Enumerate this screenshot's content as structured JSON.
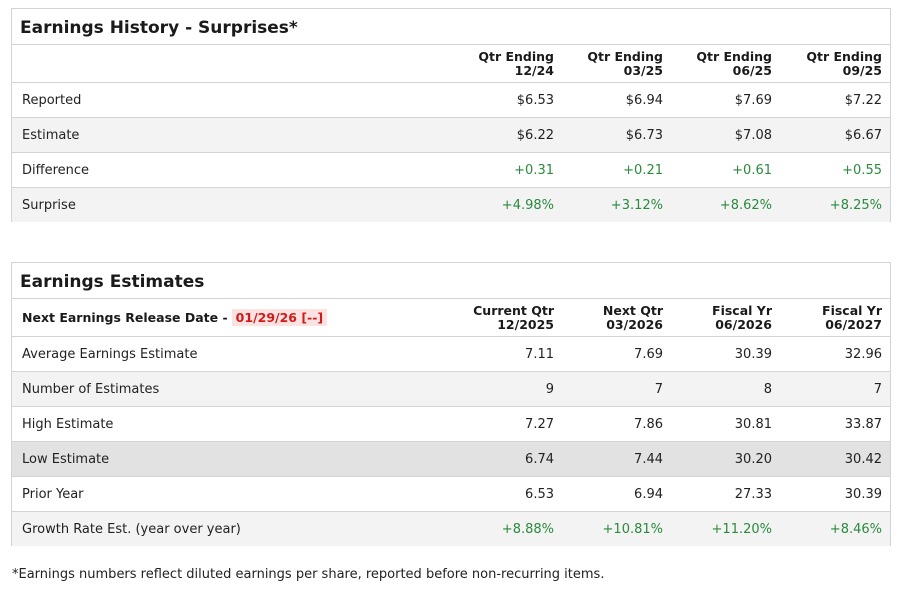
{
  "history": {
    "title": "Earnings History - Surprises*",
    "columns": [
      {
        "line1": "Qtr Ending",
        "line2": "12/24"
      },
      {
        "line1": "Qtr Ending",
        "line2": "03/25"
      },
      {
        "line1": "Qtr Ending",
        "line2": "06/25"
      },
      {
        "line1": "Qtr Ending",
        "line2": "09/25"
      }
    ],
    "rows": [
      {
        "label": "Reported",
        "values": [
          "$6.53",
          "$6.94",
          "$7.69",
          "$7.22"
        ]
      },
      {
        "label": "Estimate",
        "values": [
          "$6.22",
          "$6.73",
          "$7.08",
          "$6.67"
        ]
      },
      {
        "label": "Difference",
        "values": [
          "+0.31",
          "+0.21",
          "+0.61",
          "+0.55"
        ]
      },
      {
        "label": "Surprise",
        "values": [
          "+4.98%",
          "+3.12%",
          "+8.62%",
          "+8.25%"
        ]
      }
    ]
  },
  "estimates": {
    "title": "Earnings Estimates",
    "release_label": "Next Earnings Release Date -",
    "release_date": "01/29/26 [--]",
    "columns": [
      {
        "line1": "Current Qtr",
        "line2": "12/2025"
      },
      {
        "line1": "Next Qtr",
        "line2": "03/2026"
      },
      {
        "line1": "Fiscal Yr",
        "line2": "06/2026"
      },
      {
        "line1": "Fiscal Yr",
        "line2": "06/2027"
      }
    ],
    "rows": [
      {
        "label": "Average Earnings Estimate",
        "values": [
          "7.11",
          "7.69",
          "30.39",
          "32.96"
        ]
      },
      {
        "label": "Number of Estimates",
        "values": [
          "9",
          "7",
          "8",
          "7"
        ]
      },
      {
        "label": "High Estimate",
        "values": [
          "7.27",
          "7.86",
          "30.81",
          "33.87"
        ]
      },
      {
        "label": "Low Estimate",
        "values": [
          "6.74",
          "7.44",
          "30.20",
          "30.42"
        ]
      },
      {
        "label": "Prior Year",
        "values": [
          "6.53",
          "6.94",
          "27.33",
          "30.39"
        ]
      },
      {
        "label": "Growth Rate Est. (year over year)",
        "values": [
          "+8.88%",
          "+10.81%",
          "+11.20%",
          "+8.46%"
        ]
      }
    ]
  },
  "footnote": "*Earnings numbers reflect diluted earnings per share, reported before non-recurring items.",
  "colors": {
    "positive": "#2a8a3e",
    "release_date": "#d11a1a",
    "highlight_row": "#e2e2e2"
  }
}
